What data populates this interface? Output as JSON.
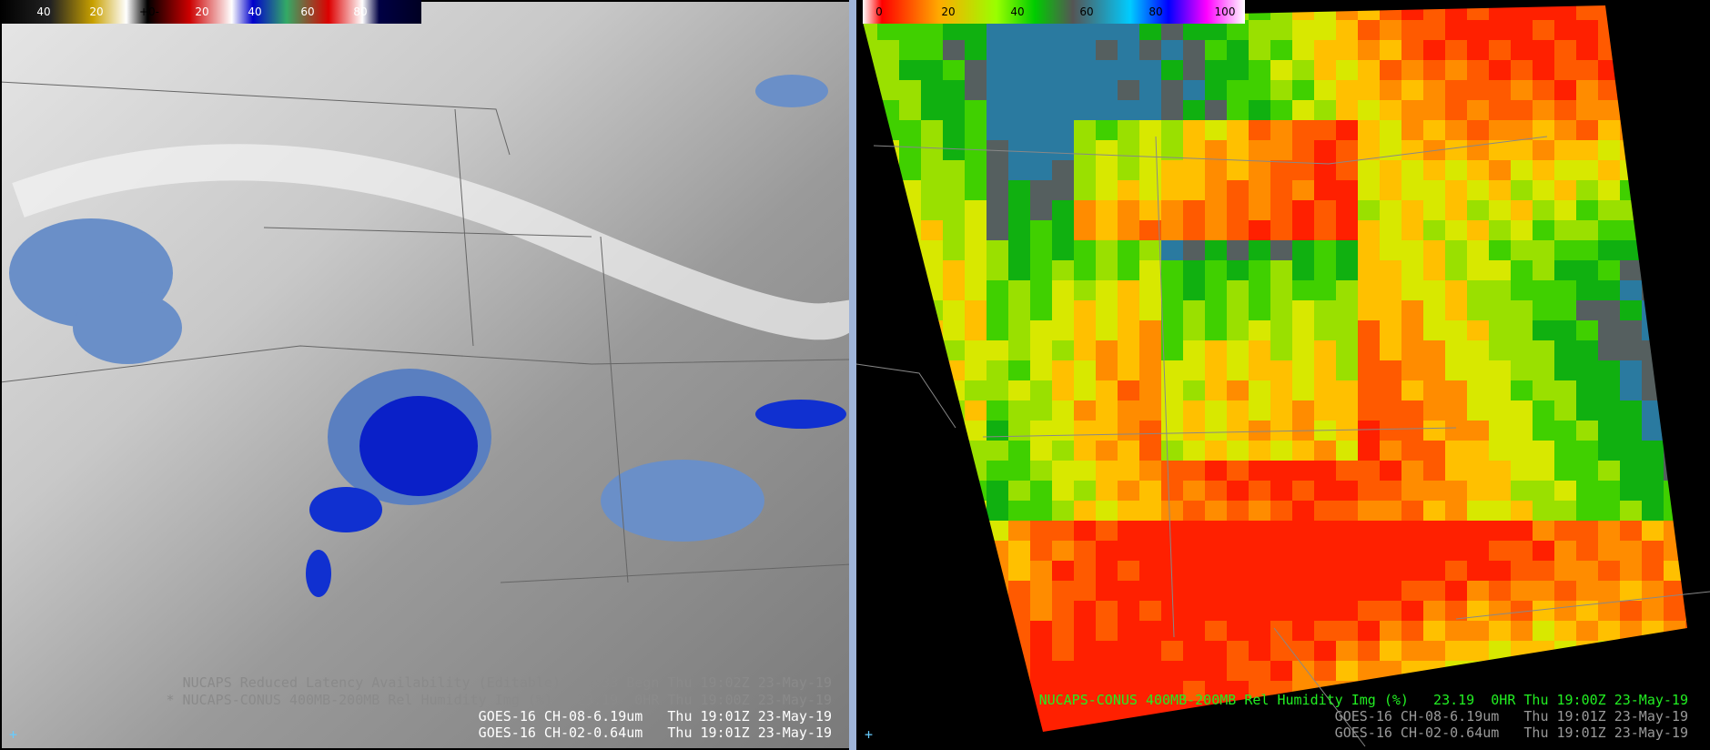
{
  "left_panel": {
    "colorbar": {
      "labels": [
        "40",
        "20",
        "+0-",
        "20",
        "40",
        "60",
        "80"
      ]
    },
    "legend": [
      "NUCAPS Reduced Latency Availability (Editable)   0:33 Begn Thu 19:02Z 23-May-19",
      "* NUCAPS-CONUS 400MB-200MB Rel Humidity Img (%)   23.19  0HR Thu 19:00Z 23-May-19",
      "GOES-16 CH-08-6.19um   Thu 19:01Z 23-May-19",
      "GOES-16 CH-02-0.64um   Thu 19:01Z 23-May-19"
    ]
  },
  "right_panel": {
    "colorbar": {
      "labels": [
        "0",
        "20",
        "40",
        "60",
        "80",
        "100"
      ]
    },
    "legend": [
      "NUCAPS-CONUS 400MB-200MB Rel Humidity Img (%)   23.19  0HR Thu 19:00Z 23-May-19",
      "GOES-16 CH-08-6.19um   Thu 19:01Z 23-May-19",
      "GOES-16 CH-02-0.64um   Thu 19:01Z 23-May-19"
    ]
  }
}
